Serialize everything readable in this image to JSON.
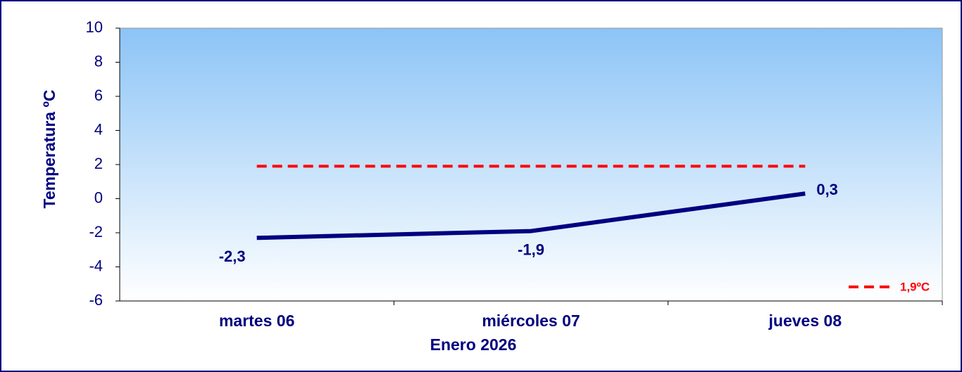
{
  "chart_data": {
    "type": "line",
    "x_label": "Enero 2026",
    "y_label": "Temperatura ºC",
    "categories": [
      "martes 06",
      "miércoles 07",
      "jueves 08"
    ],
    "series": [
      {
        "name": null,
        "color": "#000080",
        "values": [
          -2.3,
          -1.9,
          0.3
        ],
        "value_labels": [
          "-2,3",
          "-1,9",
          "0,3"
        ],
        "dashed": false
      },
      {
        "name": "1,9ºC",
        "color": "#ff0000",
        "values": [
          1.9,
          1.9,
          1.9
        ],
        "dashed": true
      }
    ],
    "ylim": [
      -6,
      10
    ],
    "yticks": [
      -6,
      -4,
      -2,
      0,
      2,
      4,
      6,
      8,
      10
    ],
    "grid": false,
    "legend": "lower right"
  }
}
